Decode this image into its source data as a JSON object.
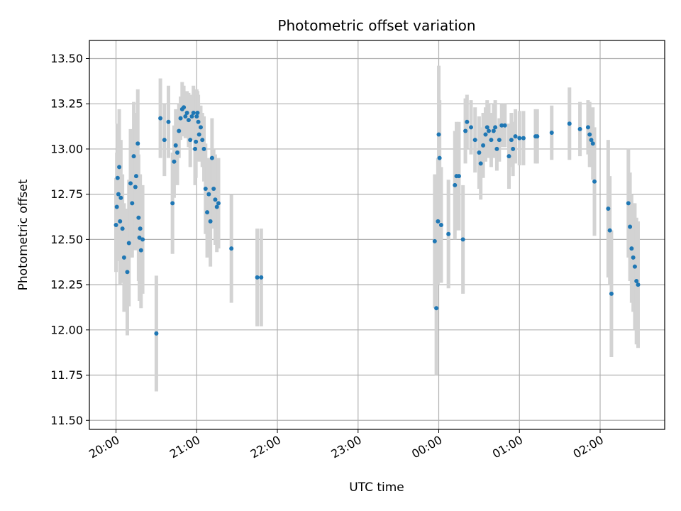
{
  "chart_data": {
    "type": "scatter",
    "title": "Photometric offset variation",
    "xlabel": "UTC time",
    "ylabel": "Photometric offset",
    "x_ticks": [
      "20:00",
      "21:00",
      "22:00",
      "23:00",
      "00:00",
      "01:00",
      "02:00"
    ],
    "x_tick_hours": [
      0,
      1,
      2,
      3,
      4,
      5,
      6
    ],
    "x_range_hours": [
      -0.33,
      6.8
    ],
    "x_reference_label": "20:00",
    "y_ticks": [
      "11.50",
      "11.75",
      "12.00",
      "12.25",
      "12.50",
      "12.75",
      "13.00",
      "13.25",
      "13.50"
    ],
    "y_tick_values": [
      11.5,
      11.75,
      12.0,
      12.25,
      12.5,
      12.75,
      13.0,
      13.25,
      13.5
    ],
    "ylim": [
      11.45,
      13.6
    ],
    "grid": true,
    "colors": {
      "point": "#1f77b4",
      "errorbar": "#d3d3d3",
      "grid": "#b0b0b0"
    },
    "series": [
      {
        "x_hours": [
          0.0,
          0.01,
          0.02,
          0.03,
          0.04,
          0.05,
          0.06,
          0.08,
          0.1,
          0.14,
          0.16,
          0.18,
          0.2,
          0.22,
          0.24,
          0.25,
          0.27,
          0.28,
          0.29,
          0.3,
          0.31,
          0.33,
          0.5,
          0.55,
          0.6,
          0.65,
          0.7,
          0.72,
          0.74,
          0.76,
          0.78,
          0.8,
          0.82,
          0.84,
          0.86,
          0.88,
          0.9,
          0.92,
          0.94,
          0.96,
          0.98,
          0.99,
          1.0,
          1.01,
          1.02,
          1.03,
          1.05,
          1.07,
          1.09,
          1.11,
          1.13,
          1.15,
          1.17,
          1.19,
          1.21,
          1.23,
          1.25,
          1.27,
          1.43,
          1.75,
          1.8,
          3.95,
          3.97,
          3.99,
          4.0,
          4.01,
          4.03,
          4.12,
          4.2,
          4.22,
          4.25,
          4.3,
          4.33,
          4.35,
          4.4,
          4.45,
          4.5,
          4.52,
          4.55,
          4.58,
          4.6,
          4.62,
          4.65,
          4.68,
          4.7,
          4.72,
          4.75,
          4.78,
          4.82,
          4.87,
          4.9,
          4.92,
          4.95,
          5.0,
          5.05,
          5.2,
          5.22,
          5.4,
          5.62,
          5.75,
          5.85,
          5.87,
          5.89,
          5.91,
          5.93,
          6.1,
          6.12,
          6.14,
          6.35,
          6.37,
          6.39,
          6.41,
          6.43,
          6.45,
          6.47
        ],
        "y": [
          12.58,
          12.68,
          12.84,
          12.75,
          12.9,
          12.6,
          12.73,
          12.56,
          12.4,
          12.32,
          12.48,
          12.81,
          12.7,
          12.96,
          12.79,
          12.85,
          13.03,
          12.62,
          12.51,
          12.56,
          12.44,
          12.5,
          11.98,
          13.17,
          13.05,
          13.15,
          12.7,
          12.93,
          13.02,
          12.98,
          13.1,
          13.17,
          13.22,
          13.23,
          13.18,
          13.2,
          13.16,
          13.05,
          13.18,
          13.2,
          13.0,
          13.04,
          13.18,
          13.2,
          13.15,
          13.08,
          13.12,
          13.05,
          13.0,
          12.78,
          12.65,
          12.75,
          12.6,
          12.95,
          12.78,
          12.72,
          12.68,
          12.7,
          12.45,
          12.29,
          12.29,
          12.49,
          12.12,
          12.6,
          13.08,
          12.95,
          12.58,
          12.53,
          12.8,
          12.85,
          12.85,
          12.5,
          13.1,
          13.15,
          13.12,
          13.05,
          12.98,
          12.92,
          13.02,
          13.08,
          13.12,
          13.1,
          13.05,
          13.1,
          13.12,
          13.0,
          13.05,
          13.13,
          13.13,
          12.96,
          13.05,
          13.0,
          13.07,
          13.06,
          13.06,
          13.07,
          13.07,
          13.09,
          13.14,
          13.11,
          13.12,
          13.08,
          13.05,
          13.03,
          12.82,
          12.67,
          12.55,
          12.2,
          12.7,
          12.57,
          12.45,
          12.4,
          12.35,
          12.27,
          12.25
        ],
        "yerr": [
          0.26,
          0.3,
          0.3,
          0.3,
          0.32,
          0.35,
          0.32,
          0.3,
          0.3,
          0.35,
          0.35,
          0.3,
          0.3,
          0.3,
          0.35,
          0.35,
          0.3,
          0.35,
          0.35,
          0.3,
          0.32,
          0.3,
          0.32,
          0.22,
          0.2,
          0.2,
          0.28,
          0.2,
          0.2,
          0.18,
          0.15,
          0.12,
          0.15,
          0.12,
          0.12,
          0.12,
          0.15,
          0.15,
          0.12,
          0.15,
          0.2,
          0.2,
          0.15,
          0.12,
          0.15,
          0.15,
          0.12,
          0.15,
          0.18,
          0.25,
          0.25,
          0.2,
          0.25,
          0.22,
          0.22,
          0.25,
          0.25,
          0.25,
          0.3,
          0.27,
          0.27,
          0.37,
          0.37,
          0.35,
          0.38,
          0.32,
          0.32,
          0.3,
          0.3,
          0.3,
          0.3,
          0.3,
          0.18,
          0.15,
          0.15,
          0.18,
          0.2,
          0.2,
          0.18,
          0.15,
          0.15,
          0.15,
          0.15,
          0.15,
          0.15,
          0.12,
          0.12,
          0.12,
          0.12,
          0.18,
          0.15,
          0.15,
          0.15,
          0.15,
          0.15,
          0.15,
          0.15,
          0.15,
          0.2,
          0.15,
          0.15,
          0.18,
          0.15,
          0.2,
          0.3,
          0.38,
          0.3,
          0.35,
          0.3,
          0.3,
          0.3,
          0.3,
          0.35,
          0.35,
          0.35
        ]
      }
    ]
  }
}
